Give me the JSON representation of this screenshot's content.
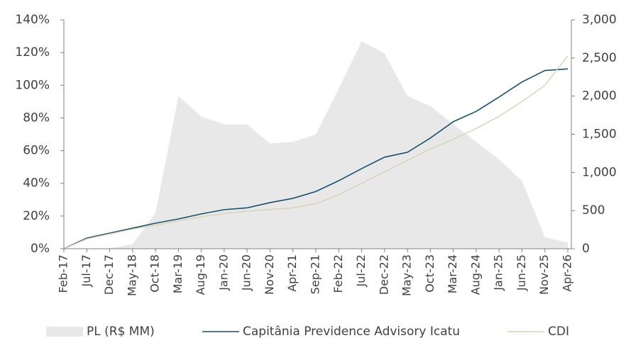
{
  "chart_data": {
    "type": "line",
    "categories": [
      "Feb-17",
      "Jul-17",
      "Dec-17",
      "May-18",
      "Oct-18",
      "Mar-19",
      "Aug-19",
      "Jan-20",
      "Jun-20",
      "Nov-20",
      "Apr-21",
      "Sep-21",
      "Feb-22",
      "Jul-22",
      "Dec-22",
      "May-23",
      "Oct-23",
      "Mar-24",
      "Aug-24",
      "Jan-25",
      "Jun-25",
      "Nov-25",
      "Apr-26"
    ],
    "series": [
      {
        "name": "PL (R$ MM)",
        "type": "area",
        "axis": "y2",
        "color": "#e8e8e8",
        "values": [
          0,
          0,
          5,
          60,
          470,
          2000,
          1730,
          1630,
          1630,
          1380,
          1400,
          1500,
          2100,
          2720,
          2560,
          2000,
          1870,
          1630,
          1400,
          1170,
          890,
          150,
          80
        ]
      },
      {
        "name": "Capitânia Previdence Advisory Icatu",
        "type": "line",
        "color": "#1b4f6b",
        "values": [
          0,
          6.5,
          9.5,
          12.6,
          15.6,
          18.2,
          21.3,
          23.9,
          25,
          28.2,
          30.8,
          35,
          41.6,
          49,
          56,
          59,
          67.7,
          77.7,
          84,
          92.8,
          102,
          109,
          110
        ]
      },
      {
        "name": "CDI",
        "type": "line",
        "color": "#d9d2b4",
        "values": [
          0,
          6,
          9,
          12,
          14.5,
          17,
          19.5,
          21.5,
          23,
          24,
          25,
          27.5,
          33,
          40,
          47,
          54,
          61,
          67,
          73.5,
          81,
          90,
          100,
          118
        ]
      }
    ],
    "ylim": [
      0,
      140
    ],
    "yticks": [
      {
        "value": 0,
        "label": "0%"
      },
      {
        "value": 20,
        "label": "20%"
      },
      {
        "value": 40,
        "label": "40%"
      },
      {
        "value": 60,
        "label": "60%"
      },
      {
        "value": 80,
        "label": "80%"
      },
      {
        "value": 100,
        "label": "100%"
      },
      {
        "value": 120,
        "label": "120%"
      },
      {
        "value": 140,
        "label": "140%"
      }
    ],
    "y2lim": [
      0,
      3000
    ],
    "y2ticks": [
      0,
      500,
      {
        "value": 1000,
        "label": "1,000"
      },
      {
        "value": 1500,
        "label": "1,500"
      },
      {
        "value": 2000,
        "label": "2,000"
      },
      {
        "value": 2500,
        "label": "2,500"
      },
      {
        "value": 3000,
        "label": "3,000"
      }
    ],
    "legend": "bottom"
  }
}
